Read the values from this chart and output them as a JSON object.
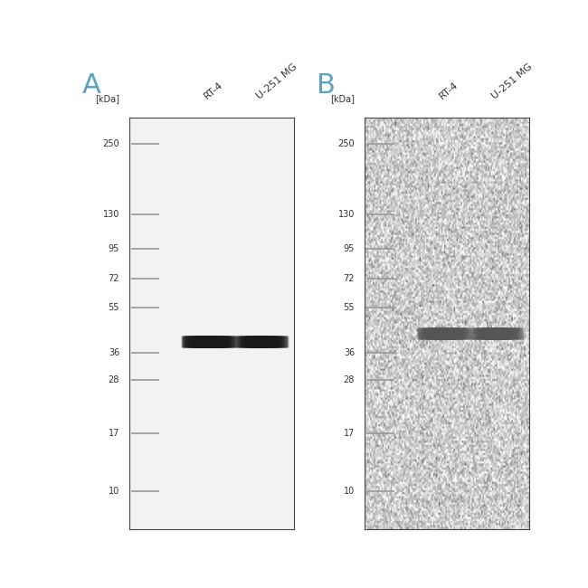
{
  "panel_A_label": "A",
  "panel_B_label": "B",
  "kda_values": [
    250,
    130,
    95,
    72,
    55,
    36,
    28,
    17,
    10
  ],
  "kda_label_names": [
    "250",
    "130",
    "95",
    "72",
    "55",
    "36",
    "28",
    "17",
    "10"
  ],
  "lane_labels": [
    "RT-4",
    "U-251 MG"
  ],
  "bg_color_A": "#f2f2f2",
  "bg_color_B": "#cccccc",
  "fig_bg": "#ffffff",
  "marker_color": "#999999",
  "band_color_A": "#1a1a1a",
  "band_color_B": "#555555",
  "band_kda_A": 40,
  "band_kda_B": 43,
  "log_min": 0.845,
  "log_max": 2.505,
  "panel_label_color": "#5ba3c9",
  "label_color": "#333333",
  "noise_seed": 42,
  "noise_std_B": 0.12
}
